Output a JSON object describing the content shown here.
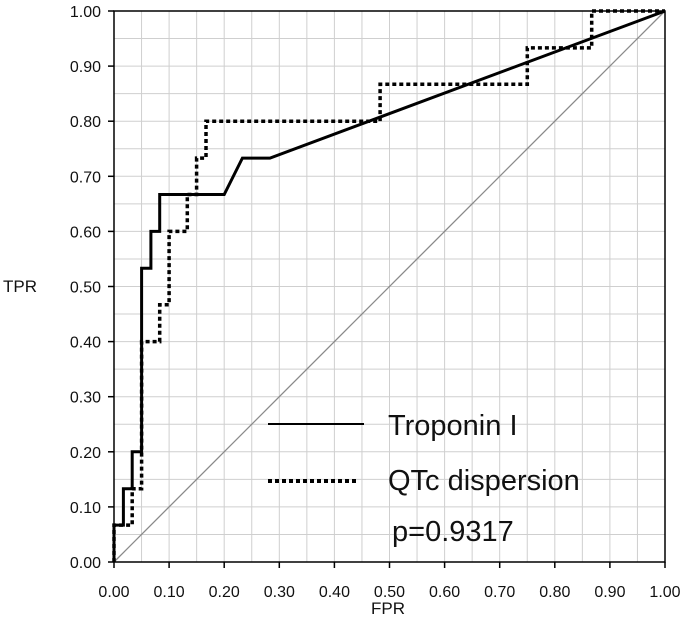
{
  "chart_data": {
    "type": "line",
    "title": "",
    "xlabel": "FPR",
    "ylabel": "TPR",
    "xlim": [
      0,
      1
    ],
    "ylim": [
      0,
      1
    ],
    "grid": true,
    "x_ticks": [
      "0.00",
      "0.10",
      "0.20",
      "0.30",
      "0.40",
      "0.50",
      "0.60",
      "0.70",
      "0.80",
      "0.90",
      "1.00"
    ],
    "y_ticks": [
      "0.00",
      "0.10",
      "0.20",
      "0.30",
      "0.40",
      "0.50",
      "0.60",
      "0.70",
      "0.80",
      "0.90",
      "1.00"
    ],
    "legend_position": "lower-right",
    "series": [
      {
        "name": "Troponin I",
        "style": "solid",
        "color": "#000000",
        "points": [
          [
            0.0,
            0.0
          ],
          [
            0.0,
            0.067
          ],
          [
            0.017,
            0.067
          ],
          [
            0.017,
            0.133
          ],
          [
            0.033,
            0.133
          ],
          [
            0.033,
            0.2
          ],
          [
            0.05,
            0.2
          ],
          [
            0.05,
            0.533
          ],
          [
            0.067,
            0.533
          ],
          [
            0.067,
            0.6
          ],
          [
            0.083,
            0.6
          ],
          [
            0.083,
            0.667
          ],
          [
            0.2,
            0.667
          ],
          [
            0.233,
            0.733
          ],
          [
            0.283,
            0.733
          ],
          [
            1.0,
            1.0
          ]
        ]
      },
      {
        "name": "QTc dispersion",
        "style": "dotted",
        "color": "#000000",
        "points": [
          [
            0.0,
            0.0
          ],
          [
            0.0,
            0.067
          ],
          [
            0.033,
            0.067
          ],
          [
            0.033,
            0.133
          ],
          [
            0.05,
            0.133
          ],
          [
            0.05,
            0.2
          ],
          [
            0.05,
            0.4
          ],
          [
            0.083,
            0.4
          ],
          [
            0.083,
            0.467
          ],
          [
            0.1,
            0.467
          ],
          [
            0.1,
            0.6
          ],
          [
            0.133,
            0.6
          ],
          [
            0.133,
            0.667
          ],
          [
            0.15,
            0.667
          ],
          [
            0.15,
            0.733
          ],
          [
            0.167,
            0.733
          ],
          [
            0.167,
            0.8
          ],
          [
            0.483,
            0.8
          ],
          [
            0.483,
            0.867
          ],
          [
            0.75,
            0.867
          ],
          [
            0.75,
            0.933
          ],
          [
            0.867,
            0.933
          ],
          [
            0.867,
            1.0
          ],
          [
            1.0,
            1.0
          ]
        ]
      },
      {
        "name": "reference",
        "style": "thin",
        "color": "#8a8a8a",
        "points": [
          [
            0,
            0
          ],
          [
            1,
            1
          ]
        ]
      }
    ],
    "annotations": [
      "p=0.9317"
    ]
  }
}
